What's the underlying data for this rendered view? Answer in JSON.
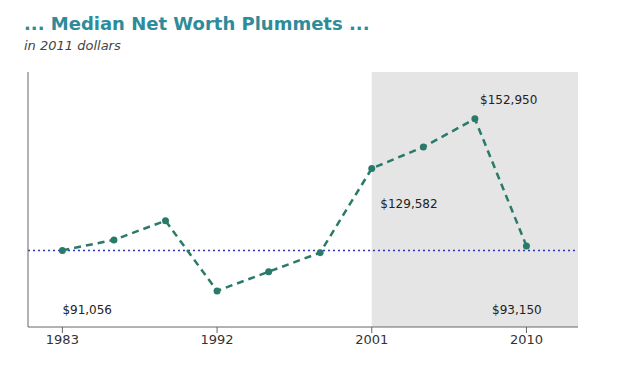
{
  "chart_data": {
    "type": "line",
    "title": "... Median Net Worth Plummets ...",
    "subtitle": "in 2011 dollars",
    "title_color": "#2E8B9A",
    "subtitle_color": "#444444",
    "x": [
      1983,
      1986,
      1989,
      1992,
      1995,
      1998,
      2001,
      2004,
      2007,
      2010
    ],
    "values": [
      91056,
      96000,
      105000,
      72000,
      81000,
      90000,
      129582,
      139700,
      152950,
      93150
    ],
    "color": "#2A7A6A",
    "line_style": "dashed",
    "marker": "circle",
    "xlim": [
      1981,
      2013
    ],
    "xticks": [
      1983,
      1992,
      2001,
      2010
    ],
    "ylim": [
      55000,
      175000
    ],
    "yticks": [],
    "tick_labels": "x",
    "grid": false,
    "reference_lines": [
      {
        "y": 91056,
        "color": "#3333BB",
        "line_style": "dotted"
      }
    ],
    "shaded_regions": [
      {
        "x": [
          2001,
          2013
        ],
        "color": "#D0D0D0"
      }
    ],
    "annotations": [
      {
        "text": "$91,056",
        "x": 1983,
        "y": 63000
      },
      {
        "text": "$129,582",
        "x": 2001.5,
        "y": 113000
      },
      {
        "text": "$152,950",
        "x": 2007.3,
        "y": 162000
      },
      {
        "text": "$93,150",
        "x": 2008.0,
        "y": 63000
      }
    ]
  }
}
